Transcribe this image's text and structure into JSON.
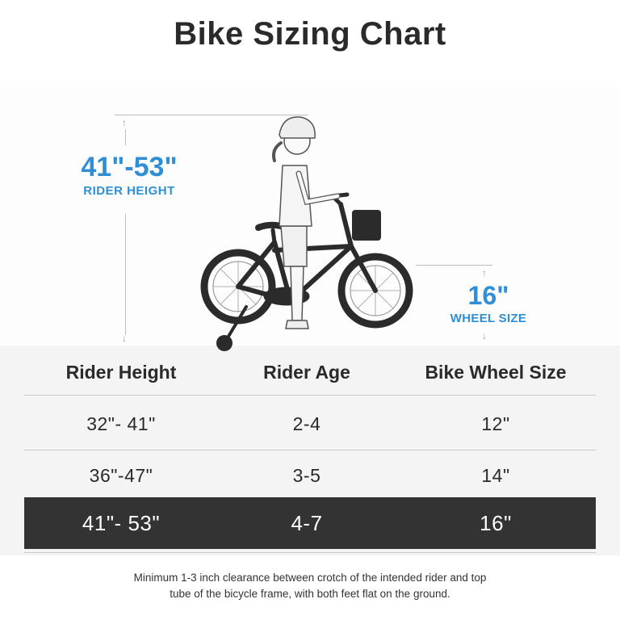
{
  "title": "Bike Sizing Chart",
  "rider_height": {
    "value": "41\"-53\"",
    "label": "RIDER HEIGHT"
  },
  "wheel_size": {
    "value": "16\"",
    "label": "WHEEL SIZE"
  },
  "accent_color": "#2e8fd6",
  "highlight_row_color": "#333333",
  "table": {
    "headers": [
      "Rider Height",
      "Rider Age",
      "Bike Wheel Size"
    ],
    "rows": [
      [
        "32\"- 41\"",
        "2-4",
        "12\""
      ],
      [
        "36\"-47\"",
        "3-5",
        "14\""
      ],
      [
        "41\"- 53\"",
        "4-7",
        "16\""
      ]
    ],
    "highlighted_row": 2
  },
  "note": {
    "line1": "Minimum 1-3 inch clearance between crotch of the intended rider and top",
    "line2": "tube of the bicycle frame, with both feet flat on the ground."
  }
}
